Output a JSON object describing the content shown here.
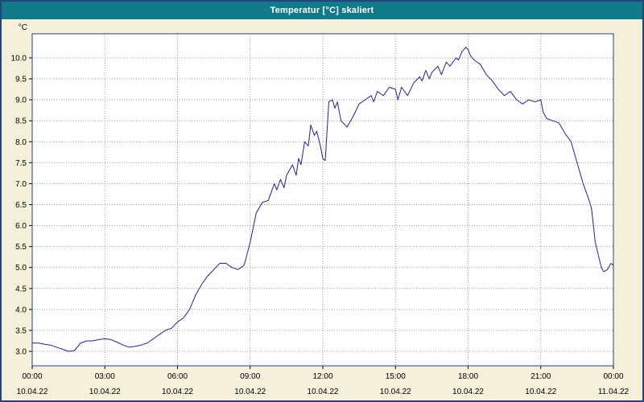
{
  "window": {
    "title": "Temperatur [°C] skaliert"
  },
  "colors": {
    "title_bar": "#117b8a",
    "title_text": "#ffffff",
    "window_border": "#24427c",
    "background": "#f5f0da",
    "plot_background": "#ffffff",
    "plot_border": "#24427c",
    "grid": "#9a9a9a",
    "axis_text": "#000000",
    "line": "#2121a3"
  },
  "chart_data": {
    "type": "line",
    "title": "Temperatur [°C] skaliert",
    "xlabel": "",
    "ylabel": "°C",
    "grid": true,
    "legend_position": "none",
    "xlim": [
      0,
      24
    ],
    "ylim": [
      2.655,
      10.575
    ],
    "y_ticks": [
      {
        "value": 3.0,
        "label": "3.0"
      },
      {
        "value": 3.5,
        "label": "3.5"
      },
      {
        "value": 4.0,
        "label": "4.0"
      },
      {
        "value": 4.5,
        "label": "4.5"
      },
      {
        "value": 5.0,
        "label": "5.0"
      },
      {
        "value": 5.5,
        "label": "5.5"
      },
      {
        "value": 6.0,
        "label": "6.0"
      },
      {
        "value": 6.5,
        "label": "6.5"
      },
      {
        "value": 7.0,
        "label": "7.0"
      },
      {
        "value": 7.5,
        "label": "7.5"
      },
      {
        "value": 8.0,
        "label": "8.0"
      },
      {
        "value": 8.5,
        "label": "8.5"
      },
      {
        "value": 9.0,
        "label": "9.0"
      },
      {
        "value": 9.5,
        "label": "9.5"
      },
      {
        "value": 10.0,
        "label": "10.0"
      }
    ],
    "x_ticks": [
      {
        "hour": 0,
        "time": "00:00",
        "date": "10.04.22"
      },
      {
        "hour": 3,
        "time": "03:00",
        "date": "10.04.22"
      },
      {
        "hour": 6,
        "time": "06:00",
        "date": "10.04.22"
      },
      {
        "hour": 9,
        "time": "09:00",
        "date": "10.04.22"
      },
      {
        "hour": 12,
        "time": "12:00",
        "date": "10.04.22"
      },
      {
        "hour": 15,
        "time": "15:00",
        "date": "10.04.22"
      },
      {
        "hour": 18,
        "time": "18:00",
        "date": "10.04.22"
      },
      {
        "hour": 21,
        "time": "21:00",
        "date": "10.04.22"
      },
      {
        "hour": 24,
        "time": "00:00",
        "date": "11.04.22"
      }
    ],
    "series": [
      {
        "name": "Temperatur",
        "unit": "°C",
        "color": "#2121a3",
        "points": [
          [
            0.0,
            3.2
          ],
          [
            0.25,
            3.2
          ],
          [
            0.5,
            3.17
          ],
          [
            0.75,
            3.15
          ],
          [
            1.0,
            3.1
          ],
          [
            1.25,
            3.05
          ],
          [
            1.5,
            3.0
          ],
          [
            1.75,
            3.02
          ],
          [
            2.0,
            3.2
          ],
          [
            2.25,
            3.25
          ],
          [
            2.5,
            3.25
          ],
          [
            2.75,
            3.28
          ],
          [
            3.0,
            3.3
          ],
          [
            3.25,
            3.28
          ],
          [
            3.5,
            3.22
          ],
          [
            3.75,
            3.15
          ],
          [
            4.0,
            3.1
          ],
          [
            4.25,
            3.12
          ],
          [
            4.5,
            3.15
          ],
          [
            4.75,
            3.2
          ],
          [
            5.0,
            3.3
          ],
          [
            5.25,
            3.4
          ],
          [
            5.5,
            3.5
          ],
          [
            5.75,
            3.55
          ],
          [
            6.0,
            3.7
          ],
          [
            6.25,
            3.8
          ],
          [
            6.5,
            4.0
          ],
          [
            6.75,
            4.35
          ],
          [
            7.0,
            4.6
          ],
          [
            7.25,
            4.8
          ],
          [
            7.5,
            4.95
          ],
          [
            7.75,
            5.1
          ],
          [
            8.0,
            5.1
          ],
          [
            8.25,
            5.0
          ],
          [
            8.5,
            4.95
          ],
          [
            8.75,
            5.05
          ],
          [
            9.0,
            5.6
          ],
          [
            9.25,
            6.3
          ],
          [
            9.5,
            6.55
          ],
          [
            9.75,
            6.6
          ],
          [
            10.0,
            7.0
          ],
          [
            10.1,
            6.85
          ],
          [
            10.25,
            7.1
          ],
          [
            10.4,
            6.9
          ],
          [
            10.5,
            7.2
          ],
          [
            10.75,
            7.45
          ],
          [
            10.9,
            7.2
          ],
          [
            11.0,
            7.6
          ],
          [
            11.1,
            7.45
          ],
          [
            11.25,
            8.0
          ],
          [
            11.4,
            7.9
          ],
          [
            11.5,
            8.4
          ],
          [
            11.65,
            8.15
          ],
          [
            11.75,
            8.25
          ],
          [
            11.9,
            7.9
          ],
          [
            12.0,
            7.6
          ],
          [
            12.1,
            7.55
          ],
          [
            12.25,
            8.95
          ],
          [
            12.4,
            9.0
          ],
          [
            12.5,
            8.8
          ],
          [
            12.6,
            8.95
          ],
          [
            12.75,
            8.5
          ],
          [
            13.0,
            8.35
          ],
          [
            13.25,
            8.6
          ],
          [
            13.5,
            8.9
          ],
          [
            13.75,
            9.0
          ],
          [
            14.0,
            9.1
          ],
          [
            14.1,
            8.95
          ],
          [
            14.25,
            9.2
          ],
          [
            14.5,
            9.1
          ],
          [
            14.75,
            9.3
          ],
          [
            15.0,
            9.25
          ],
          [
            15.1,
            9.0
          ],
          [
            15.25,
            9.3
          ],
          [
            15.5,
            9.1
          ],
          [
            15.75,
            9.4
          ],
          [
            16.0,
            9.55
          ],
          [
            16.1,
            9.45
          ],
          [
            16.25,
            9.7
          ],
          [
            16.4,
            9.5
          ],
          [
            16.5,
            9.65
          ],
          [
            16.75,
            9.8
          ],
          [
            16.9,
            9.6
          ],
          [
            17.0,
            9.75
          ],
          [
            17.1,
            9.9
          ],
          [
            17.25,
            9.8
          ],
          [
            17.5,
            10.0
          ],
          [
            17.6,
            9.95
          ],
          [
            17.75,
            10.15
          ],
          [
            17.9,
            10.25
          ],
          [
            18.0,
            10.2
          ],
          [
            18.1,
            10.05
          ],
          [
            18.25,
            9.95
          ],
          [
            18.5,
            9.85
          ],
          [
            18.75,
            9.6
          ],
          [
            19.0,
            9.45
          ],
          [
            19.25,
            9.25
          ],
          [
            19.5,
            9.1
          ],
          [
            19.75,
            9.2
          ],
          [
            20.0,
            9.0
          ],
          [
            20.25,
            8.9
          ],
          [
            20.5,
            9.0
          ],
          [
            20.75,
            8.95
          ],
          [
            21.0,
            9.0
          ],
          [
            21.1,
            8.7
          ],
          [
            21.25,
            8.55
          ],
          [
            21.5,
            8.5
          ],
          [
            21.75,
            8.45
          ],
          [
            22.0,
            8.2
          ],
          [
            22.25,
            8.0
          ],
          [
            22.5,
            7.5
          ],
          [
            22.75,
            7.0
          ],
          [
            23.0,
            6.6
          ],
          [
            23.1,
            6.4
          ],
          [
            23.25,
            5.6
          ],
          [
            23.5,
            5.0
          ],
          [
            23.6,
            4.9
          ],
          [
            23.75,
            4.95
          ],
          [
            23.9,
            5.1
          ],
          [
            24.0,
            5.05
          ]
        ]
      }
    ]
  }
}
